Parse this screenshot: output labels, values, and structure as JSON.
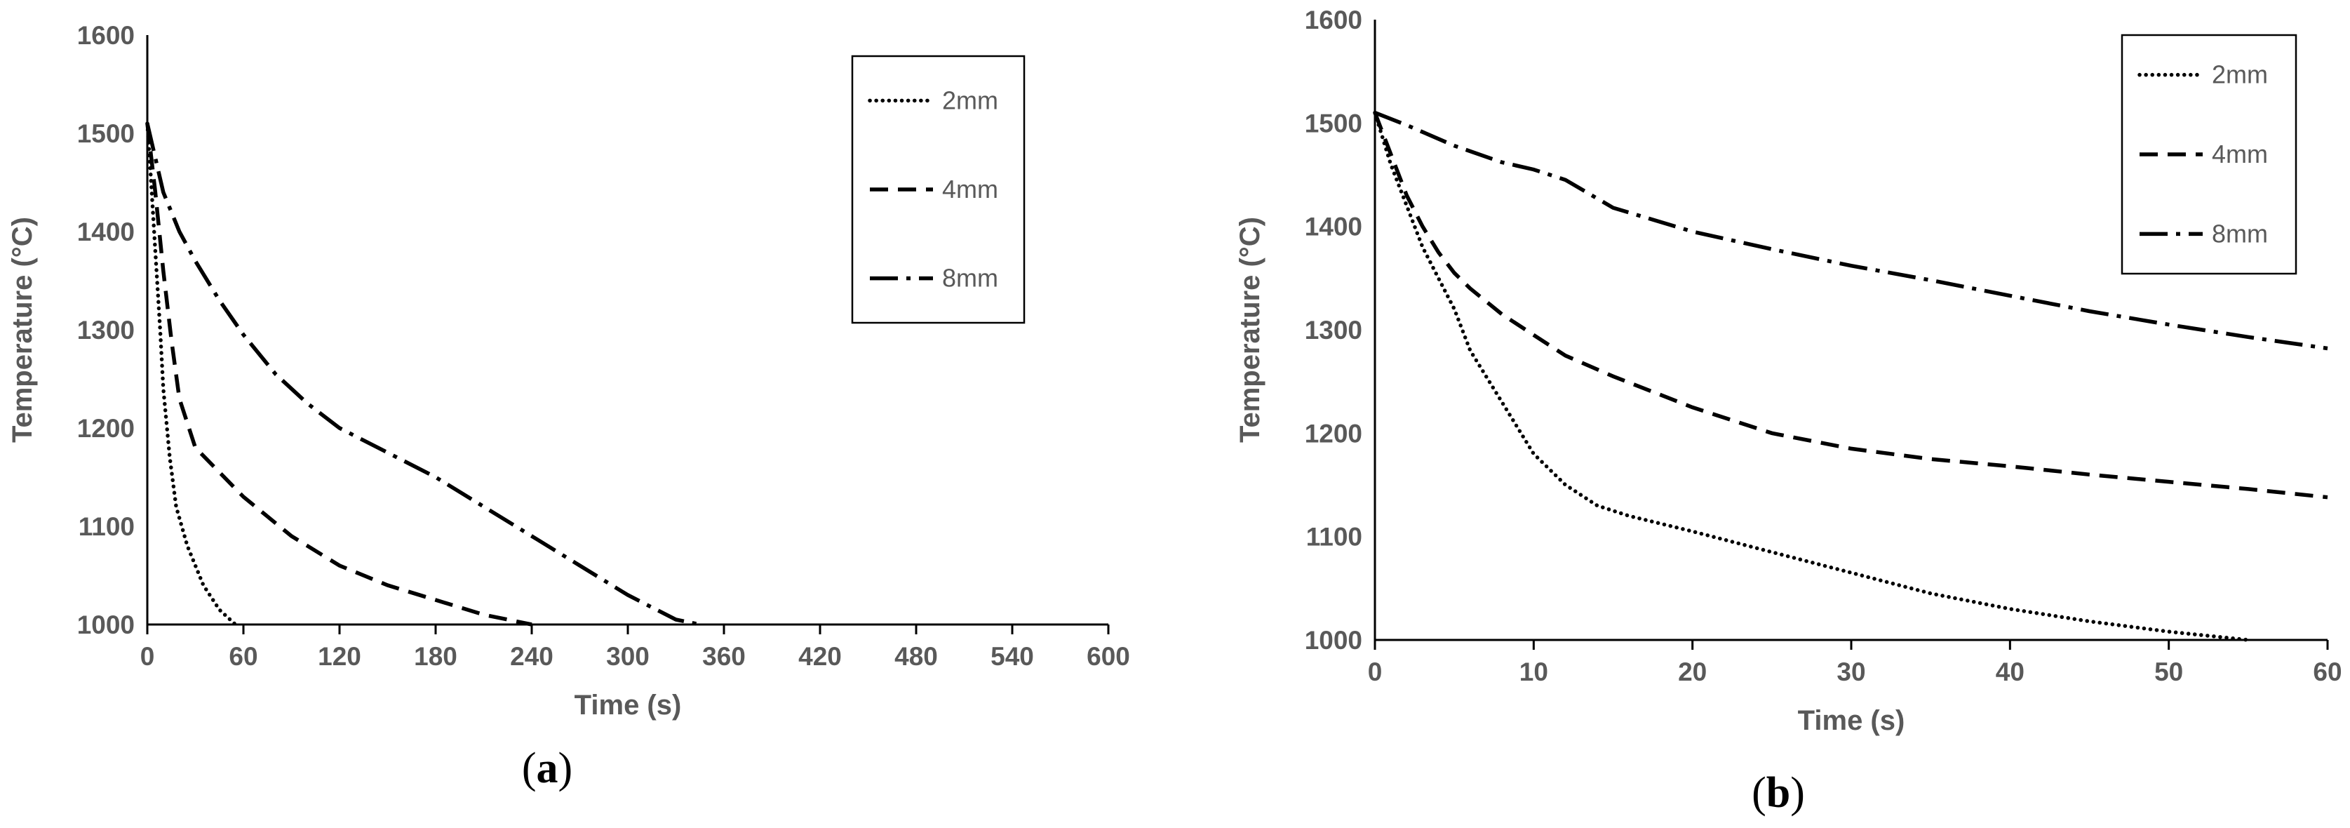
{
  "chart_data": [
    {
      "panel": "(a)",
      "panel_label": "a",
      "type": "line",
      "xlabel": "Time (s)",
      "ylabel": "Temperature (°C)",
      "xlim": [
        0,
        600
      ],
      "ylim": [
        1000,
        1600
      ],
      "xticks": [
        0,
        60,
        120,
        180,
        240,
        300,
        360,
        420,
        480,
        540,
        600
      ],
      "yticks": [
        1000,
        1100,
        1200,
        1300,
        1400,
        1500,
        1600
      ],
      "grid": false,
      "legend_position": "top-right",
      "series": [
        {
          "name": "2mm",
          "style": "dotted",
          "x": [
            0,
            2,
            5,
            8,
            10,
            14,
            18,
            25,
            35,
            45,
            55
          ],
          "y": [
            1510,
            1460,
            1380,
            1300,
            1240,
            1170,
            1120,
            1080,
            1040,
            1015,
            1000
          ]
        },
        {
          "name": "4mm",
          "style": "dashed",
          "x": [
            0,
            5,
            10,
            15,
            20,
            30,
            45,
            60,
            90,
            120,
            150,
            180,
            210,
            240
          ],
          "y": [
            1510,
            1440,
            1360,
            1290,
            1230,
            1180,
            1155,
            1130,
            1090,
            1060,
            1040,
            1025,
            1010,
            1000
          ]
        },
        {
          "name": "8mm",
          "style": "dashdot",
          "x": [
            0,
            10,
            20,
            30,
            45,
            60,
            80,
            100,
            120,
            150,
            180,
            210,
            240,
            270,
            300,
            330,
            345
          ],
          "y": [
            1510,
            1440,
            1400,
            1370,
            1330,
            1295,
            1255,
            1225,
            1200,
            1175,
            1150,
            1120,
            1090,
            1060,
            1030,
            1005,
            1000
          ]
        }
      ]
    },
    {
      "panel": "(b)",
      "panel_label": "b",
      "type": "line",
      "xlabel": "Time (s)",
      "ylabel": "Temperature (°C)",
      "xlim": [
        0,
        60
      ],
      "ylim": [
        1000,
        1600
      ],
      "xticks": [
        0,
        10,
        20,
        30,
        40,
        50,
        60
      ],
      "yticks": [
        1000,
        1100,
        1200,
        1300,
        1400,
        1500,
        1600
      ],
      "grid": false,
      "legend_position": "top-right",
      "series": [
        {
          "name": "2mm",
          "style": "dotted",
          "x": [
            0,
            1,
            2,
            3,
            4,
            5,
            6,
            8,
            10,
            12,
            14,
            16,
            20,
            25,
            30,
            35,
            40,
            45,
            50,
            55
          ],
          "y": [
            1510,
            1460,
            1420,
            1380,
            1350,
            1320,
            1280,
            1230,
            1180,
            1150,
            1130,
            1120,
            1105,
            1085,
            1065,
            1045,
            1030,
            1018,
            1008,
            1000
          ]
        },
        {
          "name": "4mm",
          "style": "dashed",
          "x": [
            0,
            1,
            2,
            3,
            4,
            5,
            6,
            8,
            10,
            12,
            15,
            20,
            25,
            30,
            35,
            40,
            45,
            50,
            55,
            60
          ],
          "y": [
            1510,
            1470,
            1430,
            1400,
            1375,
            1355,
            1340,
            1315,
            1295,
            1275,
            1255,
            1225,
            1200,
            1185,
            1175,
            1168,
            1160,
            1153,
            1146,
            1138
          ]
        },
        {
          "name": "8mm",
          "style": "dashdot",
          "x": [
            0,
            2,
            5,
            8,
            10,
            12,
            15,
            20,
            25,
            30,
            35,
            40,
            45,
            50,
            55,
            60
          ],
          "y": [
            1510,
            1498,
            1478,
            1462,
            1455,
            1445,
            1418,
            1395,
            1378,
            1362,
            1348,
            1333,
            1318,
            1305,
            1293,
            1282
          ]
        }
      ]
    }
  ]
}
